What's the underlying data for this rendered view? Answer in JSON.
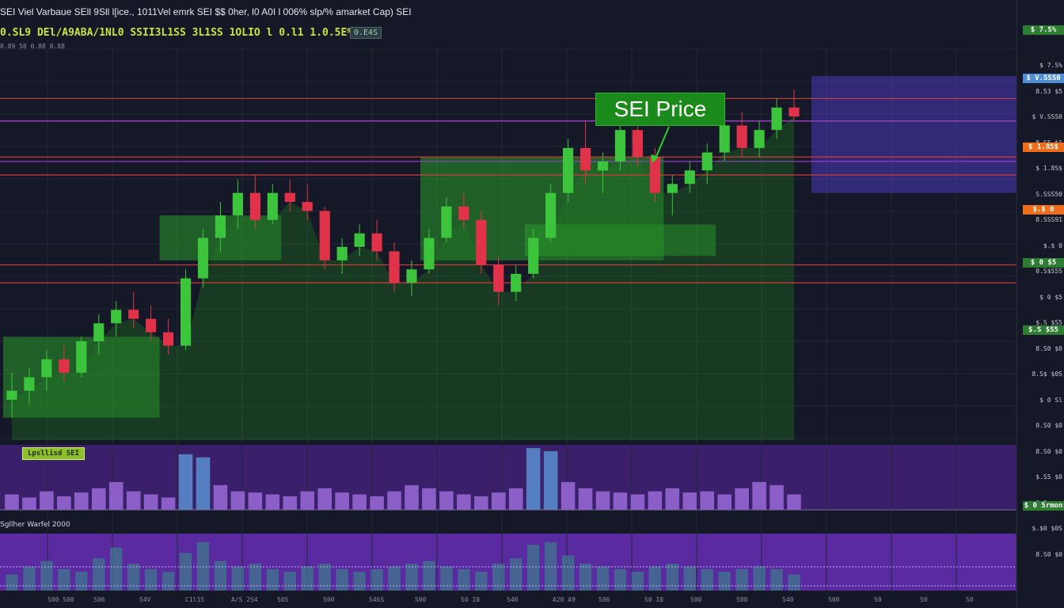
{
  "header": {
    "title": "SEI Viel Varbaue SEll 9Sll l[ice.,  1011Vel emrk SEI  $$ 0her, l0 A0I l 006%  slp/% amarket Cap) SEI",
    "ticker": "0.SL9 DEl/A9ABA/1NL0 SSII3L1SS 3L1SS 1OLIO l 0.l1 1.0.5E%",
    "ticker_badge": "0.E4S",
    "ticker_sub": "0.89 58 0.88 0.88"
  },
  "annotation": {
    "label": "SEI Price"
  },
  "volume_panel": {
    "label": "Lpsllisd SEI"
  },
  "lower_panel": {
    "label": "Sgllher Warfel 2000"
  },
  "price_axis": {
    "labels": [
      "$ 7.S%",
      "8.53 $5",
      "$ V.SSS0",
      "8.S5 $1",
      "$ 1.8S$",
      "S.SSS50",
      "8.SSS91",
      "$.$ 0",
      "0.S$S5S",
      "$ 0 $5",
      "$.S $S5",
      "8.S0 $0",
      "8.S$ $0S",
      "$ 0 Sl",
      "0.S0 $0",
      "8.S0 $0",
      "$.S5 $0",
      "$ 0 5rmon",
      "$.$0 $0S",
      "8.S0 $0"
    ],
    "tags": [
      {
        "text": "$ 7.S%",
        "color": "#2e7d32"
      },
      {
        "text": "$ V.SSS0",
        "color": "#4f8fd9"
      },
      {
        "text": "$ 1.8S$",
        "color": "#ef6c1a"
      },
      {
        "text": "$.$ 0",
        "color": "#ef6c1a"
      },
      {
        "text": "$ 0 $5",
        "color": "#2e7d32"
      },
      {
        "text": "$.S $S5",
        "color": "#2e7d32"
      },
      {
        "text": "$ 0 5rmon",
        "color": "#2e7d32"
      }
    ]
  },
  "time_axis": {
    "labels": [
      "S00 S00",
      "S06",
      "S4V",
      "C1l1S",
      "A/S 2S4",
      "S0S",
      "S00",
      "S46S",
      "S00",
      "S0 I0",
      "S40",
      "A20 A9",
      "S06",
      "S0 I0",
      "S00",
      "S00",
      "S40",
      "S00",
      "S0",
      "S0",
      "S0"
    ]
  },
  "chart_data": {
    "type": "candlestick",
    "title": "SEI Price",
    "colors": {
      "up": "#3cc43c",
      "down": "#e0334a",
      "volume_up": "#9b6bd8",
      "volume_blue": "#5a8fd0",
      "profile": "#2a9a2a",
      "zone": "#4b3ab8",
      "resistance": "#d03a3a",
      "support_purple": "#9a3fd0"
    },
    "ohlc": [
      [
        0.64,
        0.7,
        0.6,
        0.66
      ],
      [
        0.66,
        0.71,
        0.63,
        0.69
      ],
      [
        0.69,
        0.75,
        0.66,
        0.73
      ],
      [
        0.73,
        0.76,
        0.68,
        0.7
      ],
      [
        0.7,
        0.78,
        0.69,
        0.77
      ],
      [
        0.77,
        0.83,
        0.74,
        0.81
      ],
      [
        0.81,
        0.86,
        0.78,
        0.84
      ],
      [
        0.84,
        0.88,
        0.8,
        0.82
      ],
      [
        0.82,
        0.85,
        0.77,
        0.79
      ],
      [
        0.79,
        0.82,
        0.74,
        0.76
      ],
      [
        0.76,
        0.93,
        0.75,
        0.91
      ],
      [
        0.91,
        1.02,
        0.89,
        1.0
      ],
      [
        1.0,
        1.08,
        0.97,
        1.05
      ],
      [
        1.05,
        1.13,
        1.02,
        1.1
      ],
      [
        1.1,
        1.14,
        1.02,
        1.04
      ],
      [
        1.04,
        1.12,
        1.03,
        1.1
      ],
      [
        1.1,
        1.13,
        1.06,
        1.08
      ],
      [
        1.08,
        1.12,
        1.04,
        1.06
      ],
      [
        1.06,
        1.07,
        0.93,
        0.95
      ],
      [
        0.95,
        1.0,
        0.92,
        0.98
      ],
      [
        0.98,
        1.03,
        0.96,
        1.01
      ],
      [
        1.01,
        1.04,
        0.95,
        0.97
      ],
      [
        0.97,
        0.99,
        0.88,
        0.9
      ],
      [
        0.9,
        0.95,
        0.87,
        0.93
      ],
      [
        0.93,
        1.02,
        0.92,
        1.0
      ],
      [
        1.0,
        1.09,
        0.99,
        1.07
      ],
      [
        1.07,
        1.1,
        1.02,
        1.04
      ],
      [
        1.04,
        1.06,
        0.92,
        0.94
      ],
      [
        0.94,
        0.96,
        0.85,
        0.88
      ],
      [
        0.88,
        0.94,
        0.86,
        0.92
      ],
      [
        0.92,
        1.02,
        0.91,
        1.0
      ],
      [
        1.0,
        1.12,
        0.99,
        1.1
      ],
      [
        1.1,
        1.22,
        1.08,
        1.2
      ],
      [
        1.2,
        1.26,
        1.12,
        1.15
      ],
      [
        1.15,
        1.19,
        1.1,
        1.17
      ],
      [
        1.17,
        1.26,
        1.15,
        1.24
      ],
      [
        1.24,
        1.28,
        1.16,
        1.18
      ],
      [
        1.18,
        1.2,
        1.08,
        1.1
      ],
      [
        1.1,
        1.14,
        1.05,
        1.12
      ],
      [
        1.12,
        1.17,
        1.1,
        1.15
      ],
      [
        1.15,
        1.21,
        1.12,
        1.19
      ],
      [
        1.19,
        1.27,
        1.17,
        1.25
      ],
      [
        1.25,
        1.28,
        1.18,
        1.2
      ],
      [
        1.2,
        1.26,
        1.18,
        1.24
      ],
      [
        1.24,
        1.31,
        1.22,
        1.29
      ],
      [
        1.29,
        1.33,
        1.26,
        1.27
      ]
    ],
    "volume": [
      0.25,
      0.2,
      0.3,
      0.22,
      0.28,
      0.35,
      0.45,
      0.3,
      0.25,
      0.2,
      0.9,
      0.85,
      0.4,
      0.3,
      0.28,
      0.25,
      0.22,
      0.3,
      0.35,
      0.28,
      0.25,
      0.22,
      0.3,
      0.4,
      0.35,
      0.3,
      0.25,
      0.22,
      0.28,
      0.35,
      1.0,
      0.95,
      0.45,
      0.35,
      0.3,
      0.28,
      0.25,
      0.3,
      0.35,
      0.28,
      0.3,
      0.25,
      0.35,
      0.45,
      0.4,
      0.25
    ],
    "oscillator": [
      0.3,
      0.45,
      0.55,
      0.4,
      0.35,
      0.6,
      0.8,
      0.5,
      0.4,
      0.35,
      0.7,
      0.9,
      0.55,
      0.45,
      0.5,
      0.4,
      0.35,
      0.45,
      0.5,
      0.4,
      0.35,
      0.4,
      0.45,
      0.5,
      0.55,
      0.45,
      0.4,
      0.35,
      0.5,
      0.6,
      0.85,
      0.9,
      0.65,
      0.5,
      0.45,
      0.4,
      0.35,
      0.45,
      0.5,
      0.45,
      0.4,
      0.35,
      0.4,
      0.45,
      0.4,
      0.3
    ],
    "resistance_levels": [
      1.31,
      1.26,
      1.18,
      1.14,
      0.94,
      0.9
    ],
    "purple_levels": [
      1.26,
      1.17
    ],
    "profile_bars": [
      {
        "from_index": 0,
        "to_index": 8,
        "top": 0.78,
        "bottom": 0.6
      },
      {
        "from_index": 9,
        "to_index": 15,
        "top": 1.05,
        "bottom": 0.95
      },
      {
        "from_index": 24,
        "to_index": 37,
        "top": 1.18,
        "bottom": 0.95
      },
      {
        "from_index": 30,
        "to_index": 40,
        "top": 1.03,
        "bottom": 0.96
      }
    ],
    "zone": {
      "top": 1.36,
      "bottom": 1.1,
      "from_index": 46
    },
    "ylim": [
      0.55,
      1.42
    ]
  }
}
